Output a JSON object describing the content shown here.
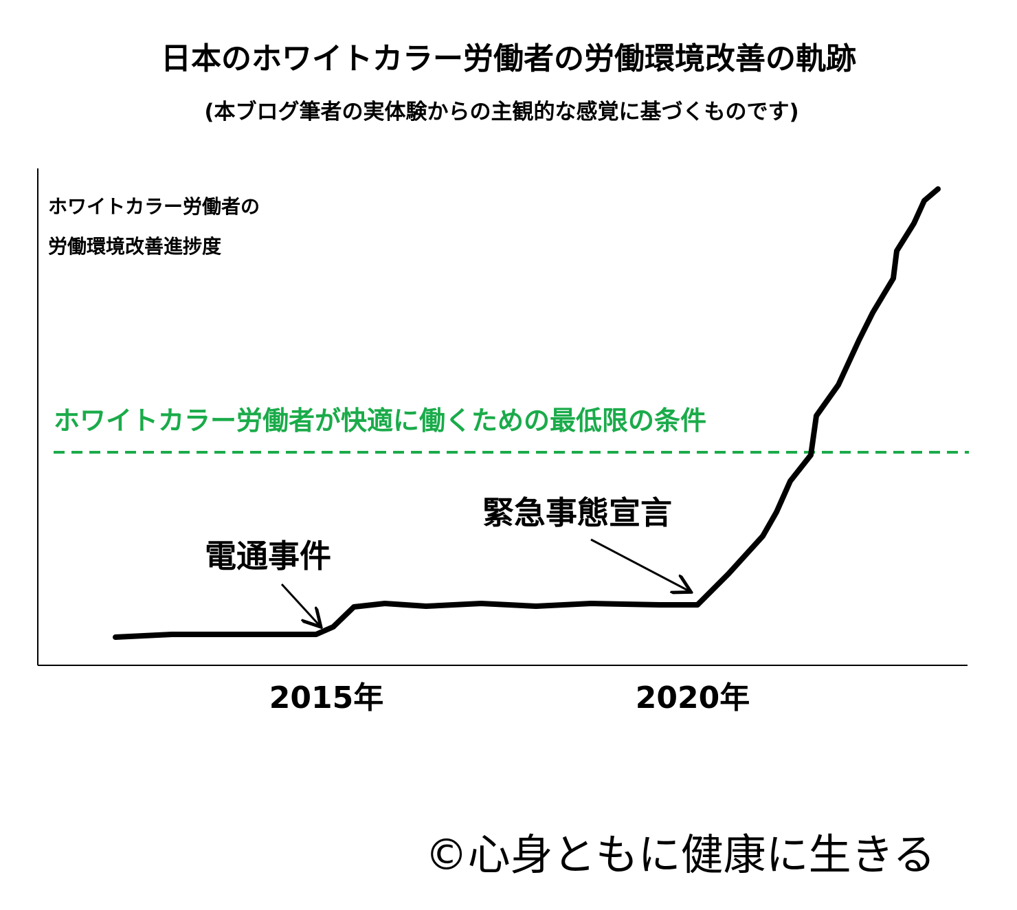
{
  "header": {
    "title": "日本のホワイトカラー労働者の労働環境改善の軌跡",
    "subtitle": "(本ブログ筆者の実体験からの主観的な感覚に基づくものです)"
  },
  "axis": {
    "y_label": [
      "ホワイトカラー労働者の",
      "労働環境改善進捗度"
    ],
    "x_labels": [
      "2015年",
      "2020年"
    ]
  },
  "threshold": {
    "label": "ホワイトカラー労働者が快適に働くための最低限の条件"
  },
  "annotations": [
    "電通事件",
    "緊急事態宣言"
  ],
  "footer": {
    "credit": "©心身ともに健康に生きる"
  }
}
